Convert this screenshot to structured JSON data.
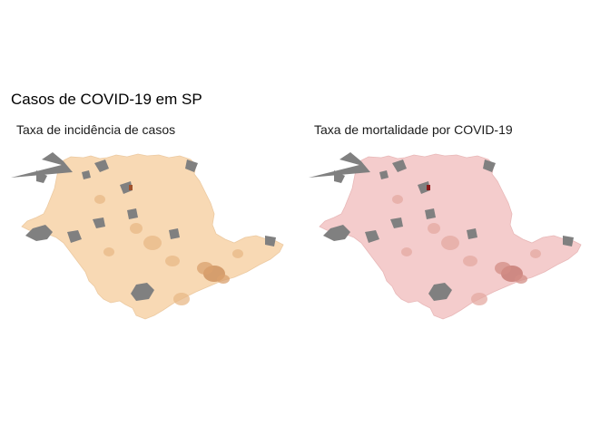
{
  "figure": {
    "title": "Casos de COVID-19 em SP"
  },
  "panels": [
    {
      "id": "incidence",
      "title": "Taxa de incidência de casos",
      "base_color": "#f8d9b4",
      "border_color": "#eccaa2",
      "hotspot_colors": [
        "#e8b887",
        "#d9a06d",
        "#c98a55"
      ],
      "peak_color": "#a0522d",
      "missing_color": "#808080"
    },
    {
      "id": "mortality",
      "title": "Taxa de mortalidade por COVID-19",
      "base_color": "#f4cccc",
      "border_color": "#e8b8b8",
      "hotspot_colors": [
        "#e4aaa2",
        "#d38e86",
        "#c2736b"
      ],
      "peak_color": "#8b1a1a",
      "missing_color": "#808080"
    }
  ]
}
